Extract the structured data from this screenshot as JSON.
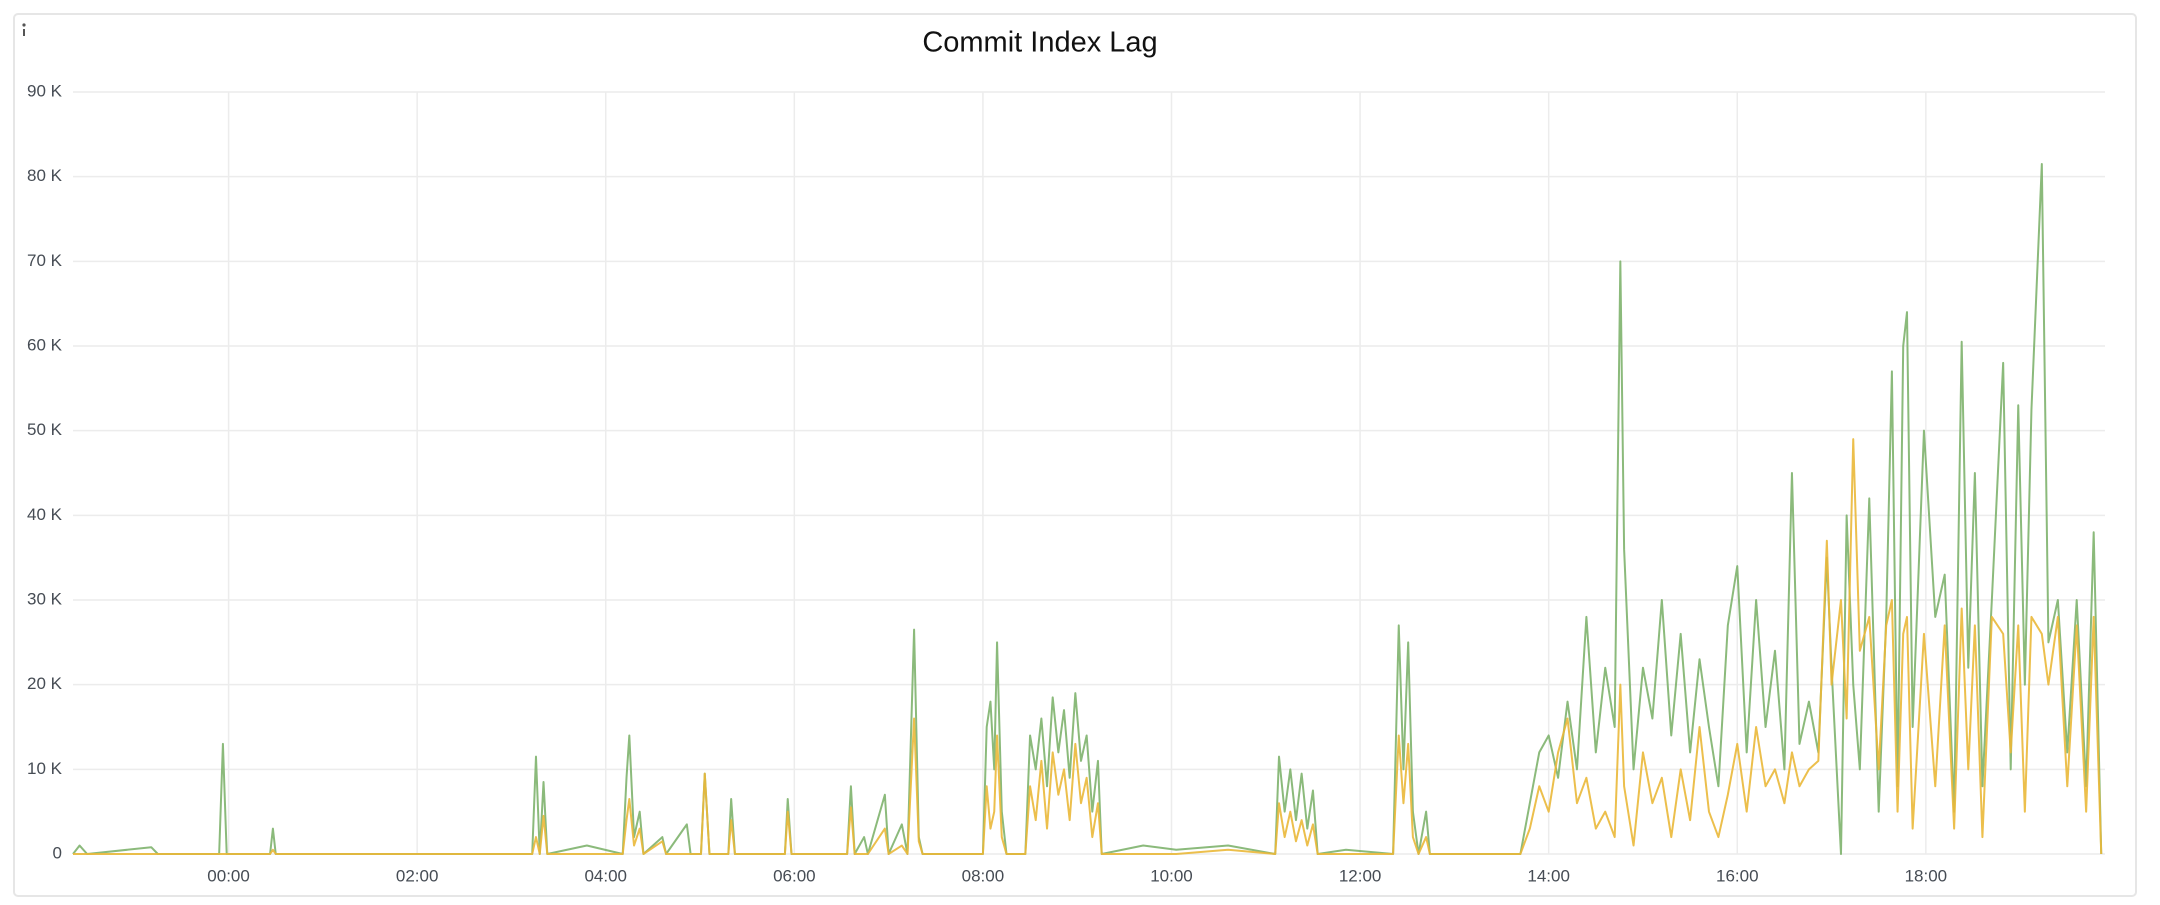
{
  "chart_data": {
    "type": "line",
    "title": "Commit Index Lag",
    "grid": true,
    "xlim": [
      -1.65,
      19.9
    ],
    "xticks": [
      {
        "value": 0,
        "label": "00:00"
      },
      {
        "value": 2,
        "label": "02:00"
      },
      {
        "value": 4,
        "label": "04:00"
      },
      {
        "value": 6,
        "label": "06:00"
      },
      {
        "value": 8,
        "label": "08:00"
      },
      {
        "value": 10,
        "label": "10:00"
      },
      {
        "value": 12,
        "label": "12:00"
      },
      {
        "value": 14,
        "label": "14:00"
      },
      {
        "value": 16,
        "label": "16:00"
      },
      {
        "value": 18,
        "label": "18:00"
      }
    ],
    "ylim": [
      0,
      90000
    ],
    "yticks": [
      0,
      {
        "value": 10000,
        "label": "10 K"
      },
      {
        "value": 20000,
        "label": "20 K"
      },
      {
        "value": 30000,
        "label": "30 K"
      },
      {
        "value": 40000,
        "label": "40 K"
      },
      {
        "value": 50000,
        "label": "50 K"
      },
      {
        "value": 60000,
        "label": "60 K"
      },
      {
        "value": 70000,
        "label": "70 K"
      },
      {
        "value": 80000,
        "label": "80 K"
      },
      {
        "value": 90000,
        "label": "90 K"
      }
    ],
    "x": [
      -1.65,
      -1.58,
      -1.5,
      -0.82,
      -0.75,
      -0.1,
      -0.06,
      -0.02,
      0.44,
      0.47,
      0.5,
      3.22,
      3.26,
      3.3,
      3.34,
      3.38,
      3.8,
      4.18,
      4.22,
      4.25,
      4.3,
      4.36,
      4.4,
      4.6,
      4.64,
      4.86,
      4.9,
      5.01,
      5.05,
      5.1,
      5.3,
      5.33,
      5.37,
      5.9,
      5.93,
      5.97,
      6.56,
      6.6,
      6.64,
      6.74,
      6.78,
      6.96,
      7.0,
      7.14,
      7.2,
      7.27,
      7.32,
      7.36,
      8.0,
      8.04,
      8.08,
      8.12,
      8.15,
      8.2,
      8.25,
      8.45,
      8.5,
      8.56,
      8.62,
      8.68,
      8.74,
      8.8,
      8.86,
      8.92,
      8.98,
      9.04,
      9.1,
      9.16,
      9.22,
      9.26,
      9.7,
      10.05,
      10.6,
      11.1,
      11.14,
      11.2,
      11.26,
      11.32,
      11.38,
      11.44,
      11.5,
      11.55,
      11.85,
      12.35,
      12.41,
      12.46,
      12.51,
      12.56,
      12.62,
      12.7,
      12.74,
      13.7,
      13.8,
      13.9,
      14.0,
      14.1,
      14.2,
      14.3,
      14.4,
      14.5,
      14.6,
      14.7,
      14.76,
      14.8,
      14.9,
      15.0,
      15.1,
      15.2,
      15.3,
      15.4,
      15.5,
      15.6,
      15.7,
      15.8,
      15.9,
      16.0,
      16.1,
      16.2,
      16.3,
      16.4,
      16.5,
      16.58,
      16.66,
      16.76,
      16.86,
      16.95,
      17.0,
      17.1,
      17.16,
      17.23,
      17.3,
      17.4,
      17.5,
      17.58,
      17.64,
      17.7,
      17.76,
      17.8,
      17.86,
      17.98,
      18.1,
      18.2,
      18.3,
      18.38,
      18.45,
      18.52,
      18.6,
      18.7,
      18.82,
      18.9,
      18.98,
      19.05,
      19.12,
      19.23,
      19.3,
      19.4,
      19.5,
      19.6,
      19.7,
      19.78,
      19.86
    ],
    "series": [
      {
        "color": "#7eb26d",
        "values": [
          0,
          1000,
          0,
          800,
          0,
          0,
          13000,
          0,
          0,
          3000,
          0,
          0,
          11500,
          0,
          8500,
          0,
          1000,
          0,
          9000,
          14000,
          2000,
          5000,
          0,
          2000,
          0,
          3500,
          0,
          0,
          9500,
          0,
          0,
          6500,
          0,
          0,
          6500,
          0,
          0,
          8000,
          0,
          2000,
          0,
          7000,
          0,
          3500,
          0,
          26500,
          2000,
          0,
          0,
          15000,
          18000,
          10000,
          25000,
          5000,
          0,
          0,
          14000,
          10000,
          16000,
          8000,
          18500,
          12000,
          17000,
          9000,
          19000,
          11000,
          14000,
          5000,
          11000,
          0,
          1000,
          500,
          1000,
          0,
          11500,
          5000,
          10000,
          4000,
          9500,
          3000,
          7500,
          0,
          500,
          0,
          27000,
          10000,
          25000,
          5000,
          0,
          5000,
          0,
          0,
          6000,
          12000,
          14000,
          9000,
          18000,
          10000,
          28000,
          12000,
          22000,
          15000,
          70000,
          36000,
          10000,
          22000,
          16000,
          30000,
          14000,
          26000,
          12000,
          23000,
          15000,
          8000,
          27000,
          34000,
          12000,
          30000,
          15000,
          24000,
          10000,
          45000,
          13000,
          18000,
          12000,
          35000,
          22000,
          0,
          40000,
          20000,
          10000,
          42000,
          5000,
          28000,
          57000,
          8000,
          60000,
          64000,
          15000,
          50000,
          28000,
          33000,
          5000,
          60500,
          22000,
          45000,
          8000,
          30000,
          58000,
          10000,
          53000,
          20000,
          52500,
          81500,
          25000,
          30000,
          12000,
          30000,
          8000,
          38000,
          0
        ]
      },
      {
        "color": "#eab839",
        "values": [
          0,
          0,
          0,
          0,
          0,
          0,
          0,
          0,
          0,
          500,
          0,
          0,
          2000,
          0,
          4500,
          0,
          0,
          0,
          4000,
          6500,
          1000,
          3000,
          0,
          1500,
          0,
          0,
          0,
          0,
          9500,
          0,
          0,
          4000,
          0,
          0,
          5000,
          0,
          0,
          5500,
          0,
          0,
          0,
          3000,
          0,
          1000,
          0,
          16000,
          1500,
          0,
          0,
          8000,
          3000,
          5000,
          14000,
          2000,
          0,
          0,
          8000,
          4000,
          11000,
          3000,
          12000,
          7000,
          10000,
          4000,
          13000,
          6000,
          9000,
          2000,
          6000,
          0,
          0,
          0,
          500,
          0,
          6000,
          2000,
          5000,
          1500,
          4000,
          1000,
          3500,
          0,
          0,
          0,
          14000,
          6000,
          13000,
          2000,
          0,
          2000,
          0,
          0,
          3000,
          8000,
          5000,
          12000,
          16000,
          6000,
          9000,
          3000,
          5000,
          2000,
          20000,
          8000,
          1000,
          12000,
          6000,
          9000,
          2000,
          10000,
          4000,
          15000,
          5000,
          2000,
          7000,
          13000,
          5000,
          15000,
          8000,
          10000,
          6000,
          12000,
          8000,
          10000,
          11000,
          37000,
          20000,
          30000,
          16000,
          49000,
          24000,
          28000,
          10000,
          27000,
          30000,
          5000,
          26000,
          28000,
          3000,
          26000,
          8000,
          27000,
          3000,
          29000,
          10000,
          27000,
          2000,
          28000,
          26000,
          12000,
          27000,
          5000,
          28000,
          26000,
          20000,
          28000,
          8000,
          27000,
          5000,
          28000,
          0
        ]
      }
    ]
  }
}
